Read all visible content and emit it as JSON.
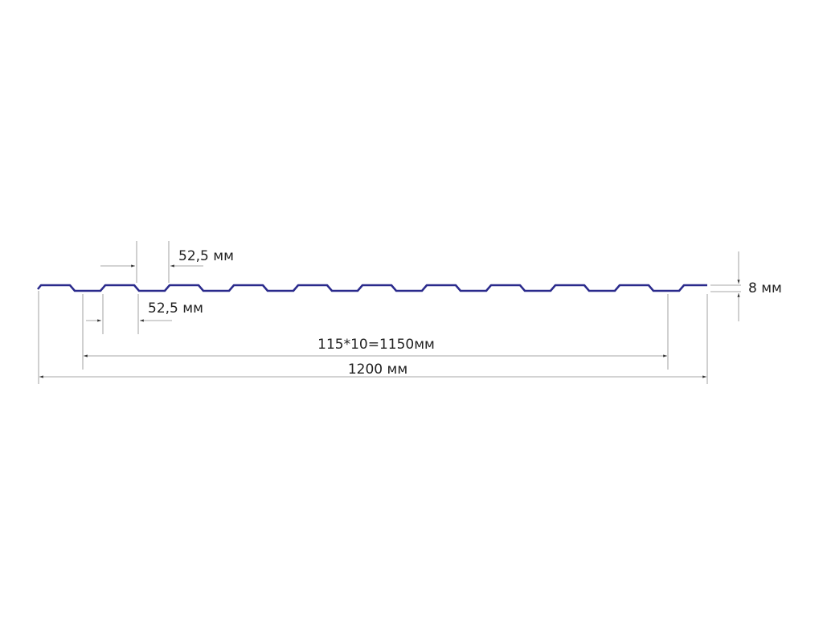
{
  "profile_color": "#2a2a8c",
  "labels": {
    "top_pitch": "52,5 мм",
    "bottom_pitch": "52,5 мм",
    "height": "8 мм",
    "useful_width": "115*10=1150мм",
    "total_width": "1200 мм"
  }
}
